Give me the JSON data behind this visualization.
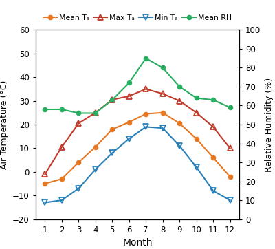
{
  "months": [
    1,
    2,
    3,
    4,
    5,
    6,
    7,
    8,
    9,
    10,
    11,
    12
  ],
  "mean_ta": [
    -5,
    -3,
    4,
    10.5,
    18,
    21,
    24.5,
    25,
    20.5,
    14,
    6,
    -2
  ],
  "max_ta": [
    -1,
    10.5,
    20.5,
    25,
    30.5,
    32,
    35,
    33,
    30,
    25,
    19,
    10
  ],
  "min_ta": [
    -13,
    -12,
    -7,
    1,
    8,
    14,
    19,
    18.5,
    11,
    2,
    -8,
    -12
  ],
  "mean_rh": [
    58,
    58,
    56,
    56,
    63,
    72,
    85,
    80,
    70,
    64,
    63,
    59
  ],
  "mean_ta_color": "#E87722",
  "max_ta_color": "#C0392B",
  "min_ta_color": "#2980B9",
  "mean_rh_color": "#27AE60",
  "ylabel_left": "Air Temperature (°C)",
  "ylabel_right": "Relative Humidity (%)",
  "xlabel": "Month",
  "ylim_left": [
    -20,
    60
  ],
  "ylim_right": [
    0,
    100
  ],
  "yticks_left": [
    -20,
    -10,
    0,
    10,
    20,
    30,
    40,
    50,
    60
  ],
  "yticks_right": [
    0,
    10,
    20,
    30,
    40,
    50,
    60,
    70,
    80,
    90,
    100
  ],
  "legend_labels": [
    "Mean Tₐ",
    "Max Tₐ",
    "Min Tₐ",
    "Mean RH"
  ]
}
